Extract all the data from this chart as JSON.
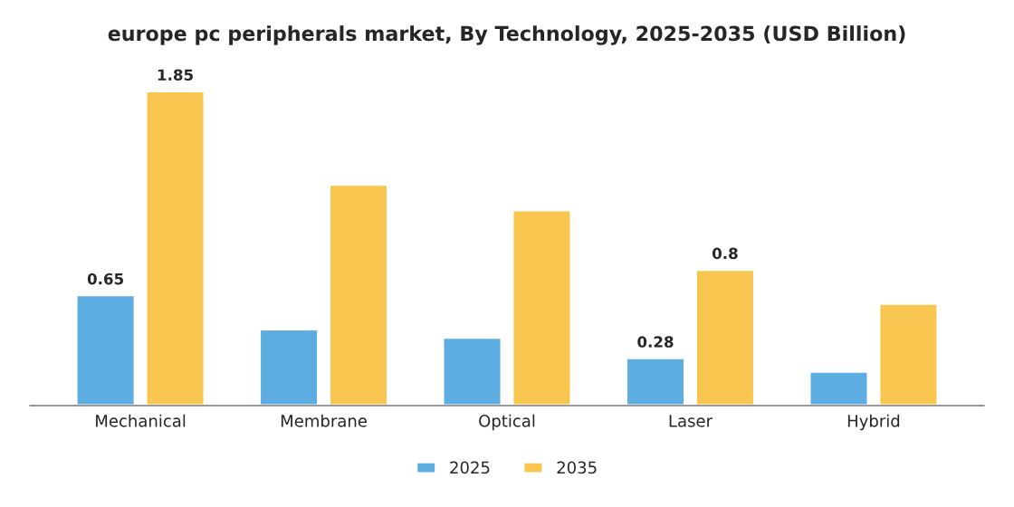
{
  "chart_data": {
    "type": "bar",
    "title": "europe pc peripherals market, By Technology, 2025-2035 (USD Billion)",
    "categories": [
      "Mechanical",
      "Membrane",
      "Optical",
      "Laser",
      "Hybrid"
    ],
    "series": [
      {
        "name": "2025",
        "color": "#5dade2",
        "values": [
          0.65,
          0.45,
          0.4,
          0.28,
          0.2
        ],
        "value_labels": [
          "0.65",
          null,
          null,
          "0.28",
          null
        ]
      },
      {
        "name": "2035",
        "color": "#f9c74f",
        "values": [
          1.85,
          1.3,
          1.15,
          0.8,
          0.6
        ],
        "value_labels": [
          "1.85",
          null,
          null,
          "0.8",
          null
        ]
      }
    ],
    "legend": "bottom",
    "grid": false
  }
}
